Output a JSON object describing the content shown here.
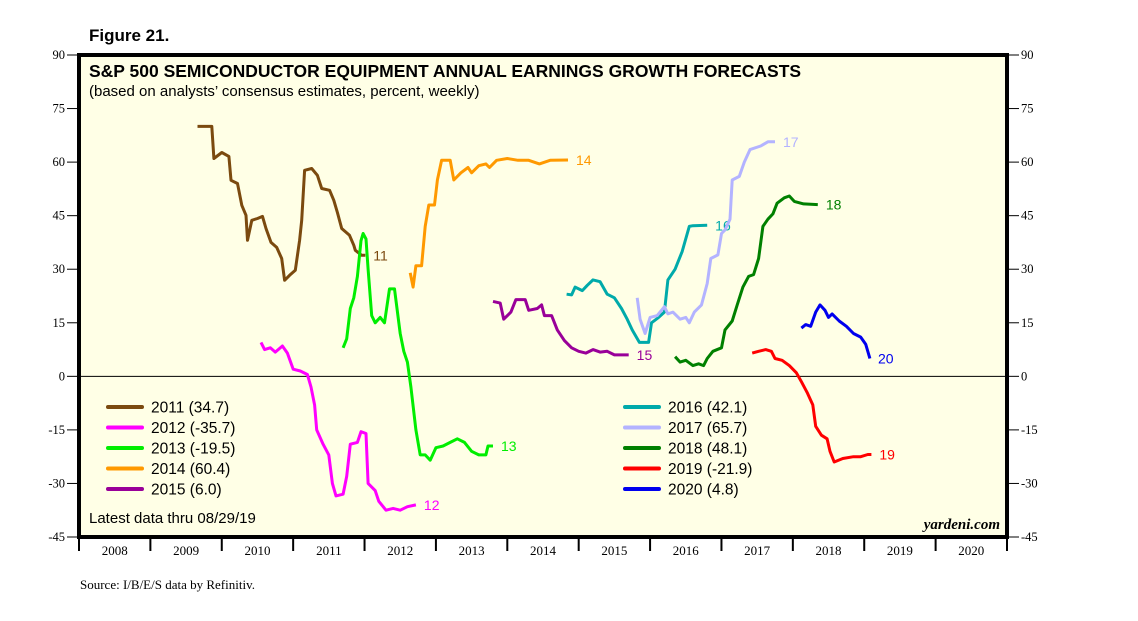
{
  "figure_label": "Figure 21.",
  "source": "Source: I/B/E/S data by Refinitiv.",
  "chart_data": {
    "type": "line",
    "title": "S&P 500 SEMICONDUCTOR EQUIPMENT ANNUAL EARNINGS GROWTH FORECASTS",
    "subtitle": "(based on analysts’ consensus estimates, percent, weekly)",
    "xlabel": "",
    "ylabel": "",
    "xlim": [
      2008,
      2021
    ],
    "ylim": [
      -45,
      90
    ],
    "yticks": [
      90,
      75,
      60,
      45,
      30,
      15,
      0,
      -15,
      -30,
      -45
    ],
    "ytick_labels": [
      "90",
      "75",
      "60",
      "45",
      "30",
      "15",
      "0",
      "-15",
      "-30",
      "-45"
    ],
    "xtick_labels": [
      "2008",
      "2009",
      "2010",
      "2011",
      "2012",
      "2013",
      "2014",
      "2015",
      "2016",
      "2017",
      "2018",
      "2019",
      "2020"
    ],
    "zero_line": true,
    "grid": false,
    "background": "#ffffe6",
    "note": "Latest data thru 08/29/19",
    "brand": "yardeni.com",
    "legend_placement": "bottom-left and bottom-center",
    "series": [
      {
        "name": "2011",
        "legend": "2011 (34.7)",
        "end_label": "11",
        "color": "#7b4a0f",
        "points": [
          [
            2009.66,
            70.0
          ],
          [
            2009.86,
            70.0
          ],
          [
            2009.89,
            61.0
          ],
          [
            2010.0,
            62.7
          ],
          [
            2010.1,
            61.6
          ],
          [
            2010.13,
            54.9
          ],
          [
            2010.22,
            54.0
          ],
          [
            2010.28,
            47.9
          ],
          [
            2010.34,
            45.1
          ],
          [
            2010.36,
            38.1
          ],
          [
            2010.42,
            43.7
          ],
          [
            2010.5,
            44.2
          ],
          [
            2010.57,
            44.8
          ],
          [
            2010.62,
            41.4
          ],
          [
            2010.69,
            37.5
          ],
          [
            2010.77,
            36.1
          ],
          [
            2010.84,
            33.0
          ],
          [
            2010.88,
            26.9
          ],
          [
            2010.95,
            28.3
          ],
          [
            2011.03,
            29.7
          ],
          [
            2011.09,
            38.1
          ],
          [
            2011.12,
            43.7
          ],
          [
            2011.16,
            57.7
          ],
          [
            2011.26,
            58.2
          ],
          [
            2011.34,
            56.3
          ],
          [
            2011.4,
            52.6
          ],
          [
            2011.51,
            52.1
          ],
          [
            2011.57,
            49.3
          ],
          [
            2011.62,
            45.9
          ],
          [
            2011.68,
            41.4
          ],
          [
            2011.79,
            39.5
          ],
          [
            2011.85,
            36.7
          ],
          [
            2011.87,
            35.3
          ],
          [
            2011.96,
            33.9
          ],
          [
            2012.01,
            33.9
          ]
        ]
      },
      {
        "name": "2012",
        "legend": "2012 (-35.7)",
        "end_label": "12",
        "color": "#ff00ff",
        "points": [
          [
            2010.55,
            9.5
          ],
          [
            2010.6,
            7.5
          ],
          [
            2010.68,
            8.0
          ],
          [
            2010.75,
            6.8
          ],
          [
            2010.85,
            8.5
          ],
          [
            2010.92,
            6.5
          ],
          [
            2011.0,
            2.0
          ],
          [
            2011.1,
            1.5
          ],
          [
            2011.2,
            0.5
          ],
          [
            2011.25,
            -3.0
          ],
          [
            2011.3,
            -8.0
          ],
          [
            2011.33,
            -15.0
          ],
          [
            2011.42,
            -19.0
          ],
          [
            2011.5,
            -22.0
          ],
          [
            2011.55,
            -30.0
          ],
          [
            2011.6,
            -33.5
          ],
          [
            2011.7,
            -33.0
          ],
          [
            2011.75,
            -28.0
          ],
          [
            2011.8,
            -19.0
          ],
          [
            2011.9,
            -18.5
          ],
          [
            2011.95,
            -15.5
          ],
          [
            2012.02,
            -16.0
          ],
          [
            2012.05,
            -30.0
          ],
          [
            2012.15,
            -32.0
          ],
          [
            2012.2,
            -35.0
          ],
          [
            2012.3,
            -37.5
          ],
          [
            2012.4,
            -37.0
          ],
          [
            2012.5,
            -37.5
          ],
          [
            2012.6,
            -36.5
          ],
          [
            2012.72,
            -36.0
          ]
        ]
      },
      {
        "name": "2013",
        "legend": "2013 (-19.5)",
        "end_label": "13",
        "color": "#00ee00",
        "points": [
          [
            2011.7,
            8.0
          ],
          [
            2011.75,
            10.5
          ],
          [
            2011.8,
            19.0
          ],
          [
            2011.85,
            22.0
          ],
          [
            2011.9,
            28.0
          ],
          [
            2011.95,
            38.0
          ],
          [
            2011.98,
            40.0
          ],
          [
            2012.02,
            38.5
          ],
          [
            2012.05,
            30.0
          ],
          [
            2012.1,
            17.0
          ],
          [
            2012.15,
            15.0
          ],
          [
            2012.22,
            16.5
          ],
          [
            2012.28,
            15.0
          ],
          [
            2012.35,
            24.5
          ],
          [
            2012.42,
            24.5
          ],
          [
            2012.5,
            12.0
          ],
          [
            2012.55,
            7.0
          ],
          [
            2012.6,
            4.0
          ],
          [
            2012.65,
            -3.0
          ],
          [
            2012.72,
            -15.0
          ],
          [
            2012.78,
            -22.0
          ],
          [
            2012.85,
            -22.0
          ],
          [
            2012.92,
            -23.5
          ],
          [
            2013.0,
            -20.0
          ],
          [
            2013.1,
            -19.5
          ],
          [
            2013.2,
            -18.5
          ],
          [
            2013.3,
            -17.5
          ],
          [
            2013.4,
            -18.5
          ],
          [
            2013.5,
            -21.0
          ],
          [
            2013.6,
            -22.0
          ],
          [
            2013.7,
            -22.0
          ],
          [
            2013.73,
            -19.5
          ],
          [
            2013.8,
            -19.5
          ]
        ]
      },
      {
        "name": "2014",
        "legend": "2014 (60.4)",
        "end_label": "14",
        "color": "#ff9900",
        "points": [
          [
            2012.64,
            29.0
          ],
          [
            2012.68,
            25.0
          ],
          [
            2012.72,
            31.0
          ],
          [
            2012.8,
            31.0
          ],
          [
            2012.85,
            42.0
          ],
          [
            2012.9,
            48.0
          ],
          [
            2012.98,
            48.0
          ],
          [
            2013.02,
            55.0
          ],
          [
            2013.08,
            60.5
          ],
          [
            2013.2,
            60.5
          ],
          [
            2013.25,
            55.0
          ],
          [
            2013.35,
            57.0
          ],
          [
            2013.45,
            58.5
          ],
          [
            2013.5,
            57.0
          ],
          [
            2013.6,
            59.0
          ],
          [
            2013.7,
            59.5
          ],
          [
            2013.75,
            58.5
          ],
          [
            2013.85,
            60.5
          ],
          [
            2014.0,
            61.0
          ],
          [
            2014.15,
            60.5
          ],
          [
            2014.3,
            60.5
          ],
          [
            2014.45,
            59.5
          ],
          [
            2014.6,
            60.5
          ],
          [
            2014.85,
            60.6
          ]
        ]
      },
      {
        "name": "2015",
        "legend": "2015 (6.0)",
        "end_label": "15",
        "color": "#990099",
        "points": [
          [
            2013.8,
            21.0
          ],
          [
            2013.9,
            20.5
          ],
          [
            2013.95,
            16.0
          ],
          [
            2014.05,
            18.0
          ],
          [
            2014.12,
            21.5
          ],
          [
            2014.25,
            21.5
          ],
          [
            2014.3,
            18.5
          ],
          [
            2014.42,
            19.0
          ],
          [
            2014.48,
            20.0
          ],
          [
            2014.52,
            17.0
          ],
          [
            2014.62,
            17.0
          ],
          [
            2014.7,
            13.0
          ],
          [
            2014.8,
            10.0
          ],
          [
            2014.9,
            8.0
          ],
          [
            2015.0,
            7.0
          ],
          [
            2015.1,
            6.5
          ],
          [
            2015.2,
            7.5
          ],
          [
            2015.3,
            6.8
          ],
          [
            2015.4,
            7.0
          ],
          [
            2015.5,
            6.0
          ],
          [
            2015.7,
            6.0
          ]
        ]
      },
      {
        "name": "2016",
        "legend": "2016 (42.1)",
        "end_label": "16",
        "color": "#00aaaa",
        "points": [
          [
            2014.83,
            23.0
          ],
          [
            2014.9,
            22.8
          ],
          [
            2014.95,
            25.0
          ],
          [
            2015.05,
            24.0
          ],
          [
            2015.12,
            25.5
          ],
          [
            2015.2,
            27.0
          ],
          [
            2015.3,
            26.5
          ],
          [
            2015.4,
            23.0
          ],
          [
            2015.5,
            22.0
          ],
          [
            2015.6,
            19.0
          ],
          [
            2015.68,
            16.0
          ],
          [
            2015.75,
            13.0
          ],
          [
            2015.85,
            9.5
          ],
          [
            2015.98,
            9.5
          ],
          [
            2016.02,
            15.0
          ],
          [
            2016.12,
            16.5
          ],
          [
            2016.2,
            18.0
          ],
          [
            2016.25,
            27.0
          ],
          [
            2016.35,
            30.0
          ],
          [
            2016.45,
            35.0
          ],
          [
            2016.55,
            42.0
          ],
          [
            2016.6,
            42.2
          ],
          [
            2016.8,
            42.3
          ]
        ]
      },
      {
        "name": "2017",
        "legend": "2017 (65.7)",
        "end_label": "17",
        "color": "#b3b3ff",
        "points": [
          [
            2015.82,
            22.0
          ],
          [
            2015.86,
            16.0
          ],
          [
            2015.93,
            12.0
          ],
          [
            2016.0,
            16.5
          ],
          [
            2016.1,
            17.0
          ],
          [
            2016.2,
            19.5
          ],
          [
            2016.25,
            17.5
          ],
          [
            2016.32,
            18.0
          ],
          [
            2016.42,
            16.0
          ],
          [
            2016.5,
            16.5
          ],
          [
            2016.55,
            15.0
          ],
          [
            2016.62,
            18.0
          ],
          [
            2016.72,
            20.0
          ],
          [
            2016.8,
            26.0
          ],
          [
            2016.85,
            33.0
          ],
          [
            2016.95,
            34.0
          ],
          [
            2017.0,
            40.0
          ],
          [
            2017.05,
            41.0
          ],
          [
            2017.12,
            44.0
          ],
          [
            2017.15,
            55.0
          ],
          [
            2017.25,
            56.0
          ],
          [
            2017.32,
            60.0
          ],
          [
            2017.4,
            63.5
          ],
          [
            2017.55,
            64.5
          ],
          [
            2017.65,
            65.7
          ],
          [
            2017.75,
            65.7
          ]
        ]
      },
      {
        "name": "2018",
        "legend": "2018 (48.1)",
        "end_label": "18",
        "color": "#008000",
        "points": [
          [
            2016.35,
            5.5
          ],
          [
            2016.42,
            4.0
          ],
          [
            2016.5,
            4.5
          ],
          [
            2016.6,
            3.0
          ],
          [
            2016.68,
            3.5
          ],
          [
            2016.75,
            3.0
          ],
          [
            2016.8,
            5.0
          ],
          [
            2016.88,
            7.0
          ],
          [
            2017.0,
            8.0
          ],
          [
            2017.05,
            13.0
          ],
          [
            2017.15,
            15.5
          ],
          [
            2017.22,
            20.0
          ],
          [
            2017.3,
            25.0
          ],
          [
            2017.38,
            28.0
          ],
          [
            2017.45,
            28.5
          ],
          [
            2017.52,
            33.0
          ],
          [
            2017.58,
            42.0
          ],
          [
            2017.65,
            44.0
          ],
          [
            2017.72,
            45.5
          ],
          [
            2017.78,
            48.5
          ],
          [
            2017.88,
            50.0
          ],
          [
            2017.95,
            50.5
          ],
          [
            2018.02,
            49.0
          ],
          [
            2018.15,
            48.3
          ],
          [
            2018.35,
            48.1
          ]
        ]
      },
      {
        "name": "2019",
        "legend": "2019 (-21.9)",
        "end_label": "19",
        "color": "#ff0000",
        "points": [
          [
            2017.43,
            6.5
          ],
          [
            2017.52,
            7.0
          ],
          [
            2017.62,
            7.5
          ],
          [
            2017.7,
            7.0
          ],
          [
            2017.75,
            5.0
          ],
          [
            2017.85,
            4.5
          ],
          [
            2017.95,
            3.0
          ],
          [
            2018.05,
            1.0
          ],
          [
            2018.12,
            -1.5
          ],
          [
            2018.2,
            -4.5
          ],
          [
            2018.28,
            -8.0
          ],
          [
            2018.32,
            -14.0
          ],
          [
            2018.4,
            -16.5
          ],
          [
            2018.48,
            -17.5
          ],
          [
            2018.52,
            -21.0
          ],
          [
            2018.58,
            -24.0
          ],
          [
            2018.7,
            -23.0
          ],
          [
            2018.85,
            -22.5
          ],
          [
            2018.95,
            -22.5
          ],
          [
            2019.05,
            -21.9
          ],
          [
            2019.1,
            -21.9
          ]
        ]
      },
      {
        "name": "2020",
        "legend": "2020 (4.8)",
        "end_label": "20",
        "color": "#0000ee",
        "points": [
          [
            2018.12,
            13.5
          ],
          [
            2018.18,
            14.5
          ],
          [
            2018.25,
            14.0
          ],
          [
            2018.32,
            18.0
          ],
          [
            2018.38,
            20.0
          ],
          [
            2018.45,
            18.5
          ],
          [
            2018.5,
            16.5
          ],
          [
            2018.55,
            17.5
          ],
          [
            2018.65,
            15.5
          ],
          [
            2018.75,
            14.0
          ],
          [
            2018.85,
            12.0
          ],
          [
            2018.95,
            11.0
          ],
          [
            2019.02,
            9.0
          ],
          [
            2019.08,
            5.0
          ]
        ]
      }
    ]
  }
}
